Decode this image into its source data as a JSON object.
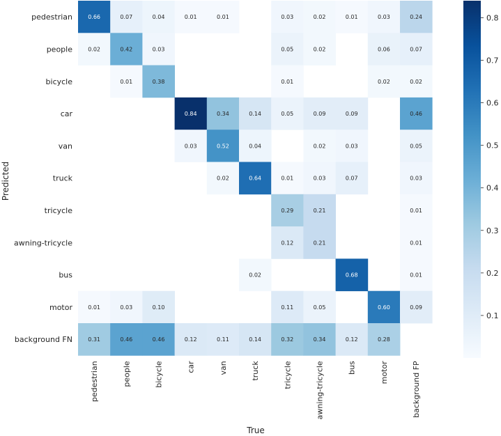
{
  "chart_data": {
    "type": "heatmap",
    "title": "",
    "xlabel": "True",
    "ylabel": "Predicted",
    "x_categories": [
      "pedestrian",
      "people",
      "bicycle",
      "car",
      "van",
      "truck",
      "tricycle",
      "awning-tricycle",
      "bus",
      "motor",
      "background FP"
    ],
    "y_categories": [
      "pedestrian",
      "people",
      "bicycle",
      "car",
      "van",
      "truck",
      "tricycle",
      "awning-tricycle",
      "bus",
      "motor",
      "background FN"
    ],
    "values": [
      [
        0.66,
        0.07,
        0.04,
        0.01,
        0.01,
        null,
        0.03,
        0.02,
        0.01,
        0.03,
        0.24
      ],
      [
        0.02,
        0.42,
        0.03,
        null,
        null,
        null,
        0.05,
        0.02,
        null,
        0.06,
        0.07
      ],
      [
        null,
        0.01,
        0.38,
        null,
        null,
        null,
        0.01,
        null,
        null,
        0.02,
        0.02
      ],
      [
        null,
        null,
        null,
        0.84,
        0.34,
        0.14,
        0.05,
        0.09,
        0.09,
        null,
        0.46
      ],
      [
        null,
        null,
        null,
        0.03,
        0.52,
        0.04,
        null,
        0.02,
        0.03,
        null,
        0.05
      ],
      [
        null,
        null,
        null,
        null,
        0.02,
        0.64,
        0.01,
        0.03,
        0.07,
        null,
        0.03
      ],
      [
        null,
        null,
        null,
        null,
        null,
        null,
        0.29,
        0.21,
        null,
        null,
        0.01
      ],
      [
        null,
        null,
        null,
        null,
        null,
        null,
        0.12,
        0.21,
        null,
        null,
        0.01
      ],
      [
        null,
        null,
        null,
        null,
        null,
        0.02,
        null,
        null,
        0.68,
        null,
        0.01
      ],
      [
        0.01,
        0.03,
        0.1,
        null,
        null,
        null,
        0.11,
        0.05,
        null,
        0.6,
        0.09
      ],
      [
        0.31,
        0.46,
        0.46,
        0.12,
        0.11,
        0.14,
        0.32,
        0.34,
        0.12,
        0.28,
        null
      ]
    ],
    "colorbar": {
      "colormap": "Blues",
      "range": [
        0.0,
        0.84
      ],
      "ticks": [
        "0.1",
        "0.2",
        "0.3",
        "0.4",
        "0.5",
        "0.6",
        "0.7",
        "0.8"
      ]
    }
  }
}
